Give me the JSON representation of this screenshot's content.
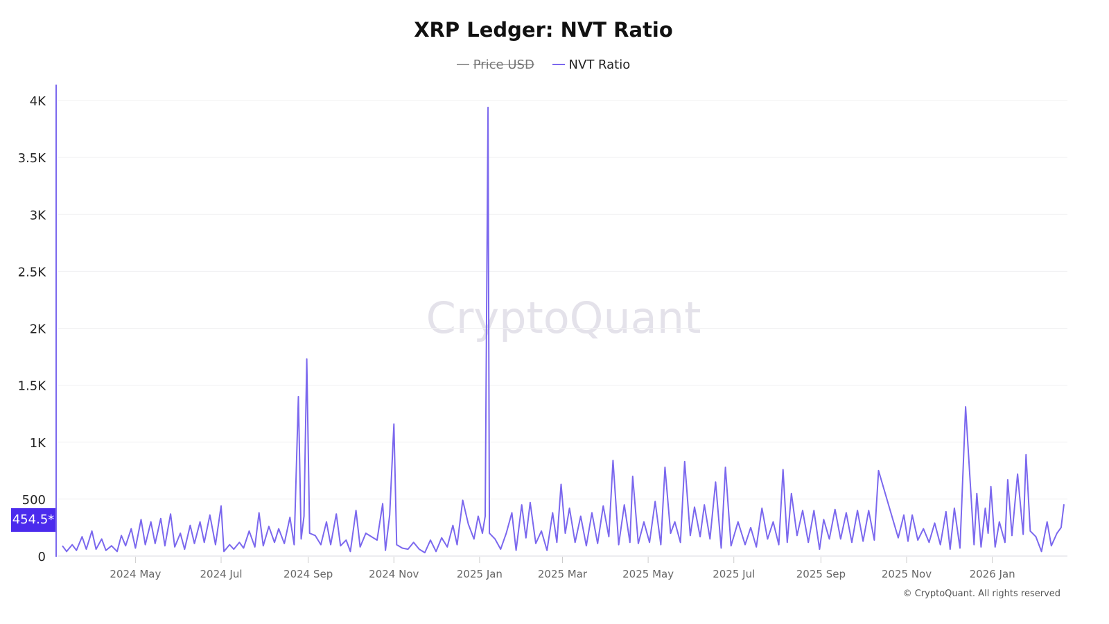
{
  "colors": {
    "series": "#7b68ee",
    "badge": "#4b2bed",
    "grid": "#eeeeee",
    "watermark": "#e4e2ea"
  },
  "legend": [
    {
      "label": "Price USD",
      "hidden": true,
      "color": "#999999"
    },
    {
      "label": "NVT Ratio",
      "hidden": false,
      "color": "#7b68ee"
    }
  ],
  "watermark": "CryptoQuant",
  "copyright": "© CryptoQuant. All rights reserved",
  "last_value_label": "454.5*",
  "chart_data": {
    "type": "line",
    "title": "XRP Ledger: NVT Ratio",
    "xlabel": "",
    "ylabel": "",
    "xlim": [
      "2024-03-10",
      "2026-02-21"
    ],
    "ylim": [
      0,
      4000
    ],
    "grid": true,
    "legend_position": "top",
    "y_ticks": [
      {
        "v": 0,
        "label": "0"
      },
      {
        "v": 500,
        "label": "500"
      },
      {
        "v": 1000,
        "label": "1K"
      },
      {
        "v": 1500,
        "label": "1.5K"
      },
      {
        "v": 2000,
        "label": "2K"
      },
      {
        "v": 2500,
        "label": "2.5K"
      },
      {
        "v": 3000,
        "label": "3K"
      },
      {
        "v": 3500,
        "label": "3.5K"
      },
      {
        "v": 4000,
        "label": "4K"
      }
    ],
    "x_ticks": [
      {
        "d": "2024-05-01",
        "label": "2024 May"
      },
      {
        "d": "2024-07-01",
        "label": "2024 Jul"
      },
      {
        "d": "2024-09-01",
        "label": "2024 Sep"
      },
      {
        "d": "2024-11-01",
        "label": "2024 Nov"
      },
      {
        "d": "2025-01-01",
        "label": "2025 Jan"
      },
      {
        "d": "2025-03-01",
        "label": "2025 Mar"
      },
      {
        "d": "2025-05-01",
        "label": "2025 May"
      },
      {
        "d": "2025-07-01",
        "label": "2025 Jul"
      },
      {
        "d": "2025-09-01",
        "label": "2025 Sep"
      },
      {
        "d": "2025-11-01",
        "label": "2025 Nov"
      },
      {
        "d": "2026-01-01",
        "label": "2026 Jan"
      }
    ],
    "series": [
      {
        "name": "NVT Ratio",
        "points": [
          [
            "2024-03-10",
            90
          ],
          [
            "2024-03-13",
            40
          ],
          [
            "2024-03-17",
            100
          ],
          [
            "2024-03-20",
            50
          ],
          [
            "2024-03-24",
            170
          ],
          [
            "2024-03-27",
            60
          ],
          [
            "2024-03-31",
            220
          ],
          [
            "2024-04-03",
            60
          ],
          [
            "2024-04-07",
            150
          ],
          [
            "2024-04-10",
            50
          ],
          [
            "2024-04-14",
            90
          ],
          [
            "2024-04-18",
            40
          ],
          [
            "2024-04-21",
            180
          ],
          [
            "2024-04-24",
            90
          ],
          [
            "2024-04-28",
            240
          ],
          [
            "2024-05-01",
            70
          ],
          [
            "2024-05-05",
            320
          ],
          [
            "2024-05-08",
            100
          ],
          [
            "2024-05-12",
            300
          ],
          [
            "2024-05-15",
            110
          ],
          [
            "2024-05-19",
            330
          ],
          [
            "2024-05-22",
            90
          ],
          [
            "2024-05-26",
            370
          ],
          [
            "2024-05-29",
            80
          ],
          [
            "2024-06-02",
            200
          ],
          [
            "2024-06-05",
            60
          ],
          [
            "2024-06-09",
            270
          ],
          [
            "2024-06-12",
            110
          ],
          [
            "2024-06-16",
            300
          ],
          [
            "2024-06-19",
            120
          ],
          [
            "2024-06-23",
            360
          ],
          [
            "2024-06-27",
            100
          ],
          [
            "2024-07-01",
            440
          ],
          [
            "2024-07-03",
            40
          ],
          [
            "2024-07-07",
            100
          ],
          [
            "2024-07-10",
            60
          ],
          [
            "2024-07-14",
            120
          ],
          [
            "2024-07-17",
            70
          ],
          [
            "2024-07-21",
            220
          ],
          [
            "2024-07-25",
            80
          ],
          [
            "2024-07-28",
            380
          ],
          [
            "2024-07-31",
            90
          ],
          [
            "2024-08-04",
            260
          ],
          [
            "2024-08-08",
            120
          ],
          [
            "2024-08-11",
            240
          ],
          [
            "2024-08-15",
            110
          ],
          [
            "2024-08-19",
            340
          ],
          [
            "2024-08-22",
            100
          ],
          [
            "2024-08-25",
            1400
          ],
          [
            "2024-08-27",
            150
          ],
          [
            "2024-08-29",
            350
          ],
          [
            "2024-08-31",
            1730
          ],
          [
            "2024-09-02",
            200
          ],
          [
            "2024-09-06",
            180
          ],
          [
            "2024-09-10",
            100
          ],
          [
            "2024-09-14",
            300
          ],
          [
            "2024-09-17",
            100
          ],
          [
            "2024-09-21",
            370
          ],
          [
            "2024-09-24",
            90
          ],
          [
            "2024-09-28",
            140
          ],
          [
            "2024-10-01",
            40
          ],
          [
            "2024-10-05",
            400
          ],
          [
            "2024-10-08",
            80
          ],
          [
            "2024-10-12",
            200
          ],
          [
            "2024-10-20",
            140
          ],
          [
            "2024-10-24",
            460
          ],
          [
            "2024-10-26",
            50
          ],
          [
            "2024-10-29",
            360
          ],
          [
            "2024-11-01",
            1160
          ],
          [
            "2024-11-03",
            100
          ],
          [
            "2024-11-07",
            70
          ],
          [
            "2024-11-11",
            60
          ],
          [
            "2024-11-15",
            120
          ],
          [
            "2024-11-19",
            60
          ],
          [
            "2024-11-23",
            30
          ],
          [
            "2024-11-27",
            140
          ],
          [
            "2024-12-01",
            40
          ],
          [
            "2024-12-05",
            160
          ],
          [
            "2024-12-09",
            80
          ],
          [
            "2024-12-13",
            270
          ],
          [
            "2024-12-16",
            100
          ],
          [
            "2024-12-20",
            490
          ],
          [
            "2024-12-24",
            280
          ],
          [
            "2024-12-28",
            150
          ],
          [
            "2024-12-31",
            350
          ],
          [
            "2025-01-03",
            200
          ],
          [
            "2025-01-05",
            350
          ],
          [
            "2025-01-07",
            3940
          ],
          [
            "2025-01-08",
            200
          ],
          [
            "2025-01-12",
            150
          ],
          [
            "2025-01-16",
            60
          ],
          [
            "2025-01-20",
            200
          ],
          [
            "2025-01-24",
            380
          ],
          [
            "2025-01-27",
            50
          ],
          [
            "2025-01-31",
            450
          ],
          [
            "2025-02-03",
            160
          ],
          [
            "2025-02-06",
            470
          ],
          [
            "2025-02-10",
            110
          ],
          [
            "2025-02-14",
            220
          ],
          [
            "2025-02-18",
            50
          ],
          [
            "2025-02-22",
            380
          ],
          [
            "2025-02-25",
            120
          ],
          [
            "2025-02-28",
            630
          ],
          [
            "2025-03-03",
            200
          ],
          [
            "2025-03-06",
            420
          ],
          [
            "2025-03-10",
            120
          ],
          [
            "2025-03-14",
            350
          ],
          [
            "2025-03-18",
            90
          ],
          [
            "2025-03-22",
            380
          ],
          [
            "2025-03-26",
            110
          ],
          [
            "2025-03-30",
            440
          ],
          [
            "2025-04-03",
            170
          ],
          [
            "2025-04-06",
            840
          ],
          [
            "2025-04-10",
            100
          ],
          [
            "2025-04-14",
            450
          ],
          [
            "2025-04-18",
            120
          ],
          [
            "2025-04-20",
            700
          ],
          [
            "2025-04-24",
            110
          ],
          [
            "2025-04-28",
            300
          ],
          [
            "2025-05-02",
            120
          ],
          [
            "2025-05-06",
            480
          ],
          [
            "2025-05-10",
            100
          ],
          [
            "2025-05-13",
            780
          ],
          [
            "2025-05-17",
            200
          ],
          [
            "2025-05-20",
            300
          ],
          [
            "2025-05-24",
            120
          ],
          [
            "2025-05-27",
            830
          ],
          [
            "2025-05-31",
            180
          ],
          [
            "2025-06-03",
            430
          ],
          [
            "2025-06-07",
            170
          ],
          [
            "2025-06-10",
            450
          ],
          [
            "2025-06-14",
            150
          ],
          [
            "2025-06-18",
            650
          ],
          [
            "2025-06-22",
            70
          ],
          [
            "2025-06-25",
            780
          ],
          [
            "2025-06-29",
            90
          ],
          [
            "2025-07-04",
            300
          ],
          [
            "2025-07-09",
            100
          ],
          [
            "2025-07-13",
            250
          ],
          [
            "2025-07-17",
            80
          ],
          [
            "2025-07-21",
            420
          ],
          [
            "2025-07-25",
            150
          ],
          [
            "2025-07-29",
            300
          ],
          [
            "2025-08-02",
            100
          ],
          [
            "2025-08-05",
            760
          ],
          [
            "2025-08-08",
            120
          ],
          [
            "2025-08-11",
            550
          ],
          [
            "2025-08-15",
            180
          ],
          [
            "2025-08-19",
            400
          ],
          [
            "2025-08-23",
            120
          ],
          [
            "2025-08-27",
            400
          ],
          [
            "2025-08-31",
            60
          ],
          [
            "2025-09-03",
            320
          ],
          [
            "2025-09-07",
            150
          ],
          [
            "2025-09-11",
            410
          ],
          [
            "2025-09-15",
            150
          ],
          [
            "2025-09-19",
            380
          ],
          [
            "2025-09-23",
            120
          ],
          [
            "2025-09-27",
            400
          ],
          [
            "2025-10-01",
            130
          ],
          [
            "2025-10-05",
            400
          ],
          [
            "2025-10-09",
            140
          ],
          [
            "2025-10-12",
            750
          ],
          [
            "2025-10-26",
            160
          ],
          [
            "2025-10-30",
            360
          ],
          [
            "2025-11-02",
            130
          ],
          [
            "2025-11-05",
            360
          ],
          [
            "2025-11-09",
            140
          ],
          [
            "2025-11-13",
            240
          ],
          [
            "2025-11-17",
            120
          ],
          [
            "2025-11-21",
            290
          ],
          [
            "2025-11-25",
            100
          ],
          [
            "2025-11-29",
            390
          ],
          [
            "2025-12-02",
            60
          ],
          [
            "2025-12-05",
            420
          ],
          [
            "2025-12-09",
            70
          ],
          [
            "2025-12-13",
            1310
          ],
          [
            "2025-12-19",
            100
          ],
          [
            "2025-12-21",
            550
          ],
          [
            "2025-12-24",
            80
          ],
          [
            "2025-12-27",
            420
          ],
          [
            "2025-12-29",
            200
          ],
          [
            "2025-12-31",
            610
          ],
          [
            "2026-01-03",
            80
          ],
          [
            "2026-01-06",
            300
          ],
          [
            "2026-01-10",
            120
          ],
          [
            "2026-01-12",
            670
          ],
          [
            "2026-01-15",
            180
          ],
          [
            "2026-01-19",
            720
          ],
          [
            "2026-01-23",
            190
          ],
          [
            "2026-01-25",
            890
          ],
          [
            "2026-01-28",
            220
          ],
          [
            "2026-02-01",
            170
          ],
          [
            "2026-02-05",
            40
          ],
          [
            "2026-02-09",
            300
          ],
          [
            "2026-02-12",
            90
          ],
          [
            "2026-02-16",
            200
          ],
          [
            "2026-02-19",
            250
          ],
          [
            "2026-02-21",
            454.5
          ]
        ]
      }
    ]
  }
}
